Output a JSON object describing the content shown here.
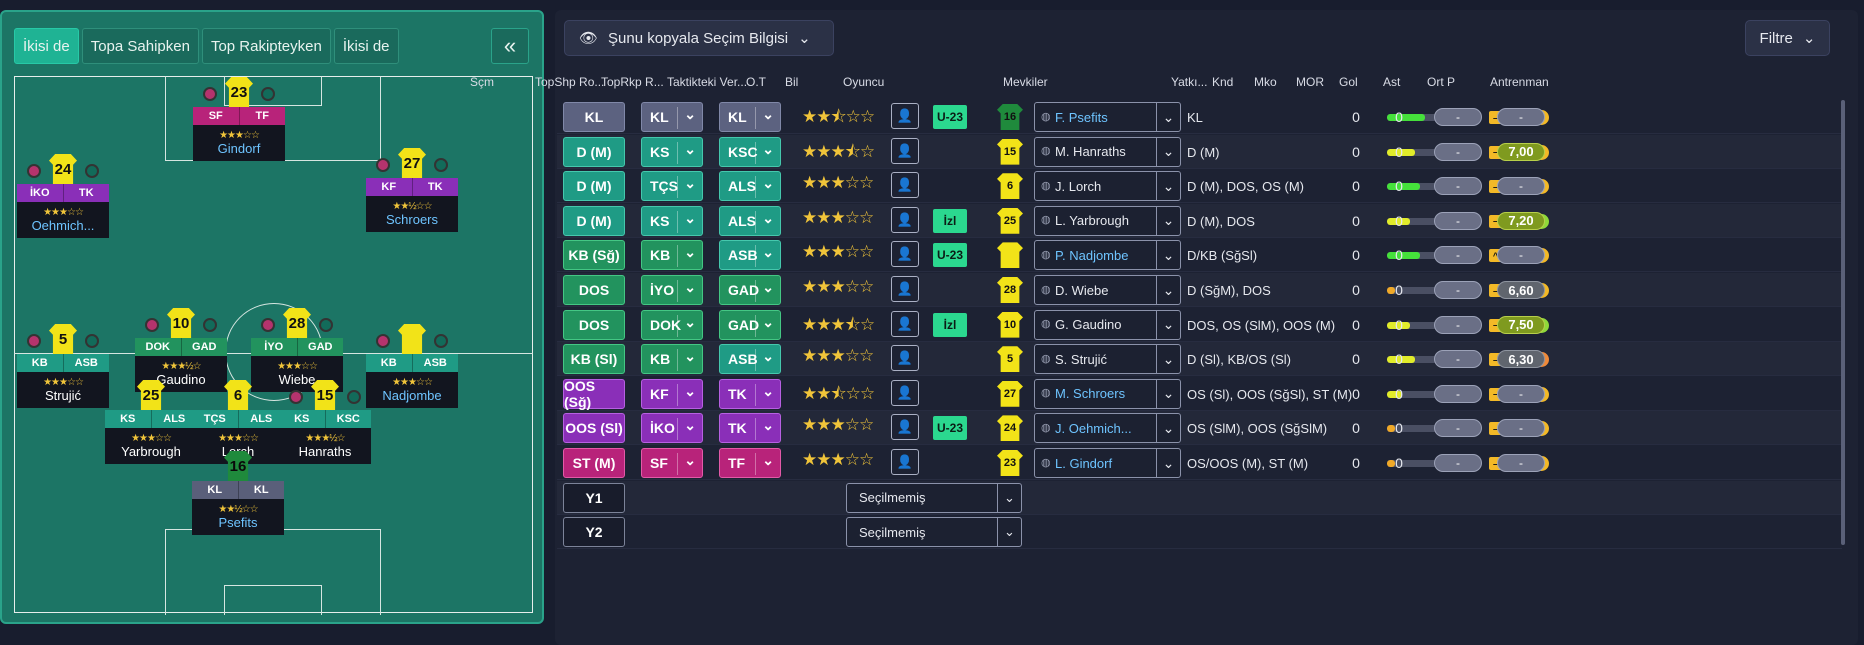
{
  "left_panel": {
    "tabs": [
      {
        "label": "İkisi de",
        "active": true
      },
      {
        "label": "Topa Sahipken",
        "active": false
      },
      {
        "label": "Top Rakipteyken",
        "active": false
      },
      {
        "label": "İkisi de",
        "active": false
      }
    ],
    "collapse_label": "«"
  },
  "pitch_players": [
    {
      "number": "23",
      "pos": [
        "SF",
        "TF"
      ],
      "color": "magenta",
      "stars": "★★★☆☆",
      "name": "Gindorf",
      "blue": true,
      "dots": true
    },
    {
      "number": "24",
      "pos": [
        "İKO",
        "TK"
      ],
      "color": "purple",
      "stars": "★★★☆☆",
      "name": "Oehmich...",
      "blue": true,
      "dots": true
    },
    {
      "number": "27",
      "pos": [
        "KF",
        "TK"
      ],
      "color": "purple",
      "stars": "★★½☆☆",
      "name": "Schroers",
      "blue": true,
      "dots": true
    },
    {
      "number": "5",
      "pos": [
        "KB",
        "ASB"
      ],
      "color": "teal",
      "stars": "★★★☆☆",
      "name": "Strujić",
      "blue": false,
      "dots": true
    },
    {
      "number": "10",
      "pos": [
        "DOK",
        "GAD"
      ],
      "color": "green",
      "stars": "★★★½☆",
      "name": "Gaudino",
      "blue": false,
      "dots": true
    },
    {
      "number": "28",
      "pos": [
        "İYO",
        "GAD"
      ],
      "color": "green",
      "stars": "★★★☆☆",
      "name": "Wiebe",
      "blue": false,
      "dots": true
    },
    {
      "number": "",
      "pos": [
        "KB",
        "ASB"
      ],
      "color": "teal",
      "stars": "★★★☆☆",
      "name": "Nadjombe",
      "blue": true,
      "dots": true
    },
    {
      "number": "25",
      "pos": [
        "KS",
        "ALS"
      ],
      "color": "teal",
      "stars": "★★★☆☆",
      "name": "Yarbrough",
      "blue": false,
      "dots": false
    },
    {
      "number": "6",
      "pos": [
        "TÇS",
        "ALS"
      ],
      "color": "teal",
      "stars": "★★★☆☆",
      "name": "Lorch",
      "blue": false,
      "dots": false
    },
    {
      "number": "15",
      "pos": [
        "KS",
        "KSC"
      ],
      "color": "teal",
      "stars": "★★★½☆",
      "name": "Hanraths",
      "blue": false,
      "dots": true
    },
    {
      "number": "16",
      "pos": [
        "KL",
        "KL"
      ],
      "color": "gray",
      "stars": "★★½☆☆",
      "name": "Psefits",
      "blue": true,
      "dots": false,
      "gk": true
    }
  ],
  "toolbar": {
    "copy_label": "Şunu kopyala Seçim Bilgisi",
    "filter_label": "Filtre"
  },
  "columns": [
    "Sçm",
    "TopShp Ro...",
    "TopRkp R...",
    "Taktikteki Ver...",
    "O.T",
    "Bil",
    "Oyuncu",
    "Mevkiler",
    "Yatkı...",
    "Knd",
    "Mko",
    "MOR",
    "Gol",
    "Ast",
    "Ort P",
    "Antrenman"
  ],
  "rows": [
    {
      "sel": "KL",
      "sel_color": "gray",
      "top": "KL",
      "top_color": "gray",
      "rkp": "KL",
      "rkp_color": "gray",
      "stars": 2.5,
      "badge": "U-23",
      "shirt": "16",
      "gk": true,
      "name": "F. Psefits",
      "blue": true,
      "mevki": "KL",
      "yatk": 0.75,
      "yc": "g",
      "mko": "",
      "mor": "",
      "gol": "0",
      "ast": "0",
      "ortp": "-",
      "antr": "-",
      "antr_v": ""
    },
    {
      "sel": "D (M)",
      "sel_color": "teal",
      "top": "KS",
      "top_color": "teal",
      "rkp": "KSC",
      "rkp_color": "teal",
      "stars": 3.5,
      "badge": "",
      "shirt": "15",
      "name": "M. Hanraths",
      "blue": false,
      "mevki": "D (M)",
      "yatk": 0.55,
      "yc": "y",
      "mko": "",
      "mor": "",
      "gol": "0",
      "ast": "0",
      "ortp": "-",
      "antr": "7,00",
      "antr_v": "v"
    },
    {
      "sel": "D (M)",
      "sel_color": "teal",
      "top": "TÇS",
      "top_color": "teal",
      "rkp": "ALS",
      "rkp_color": "teal",
      "stars": 3,
      "badge": "",
      "shirt": "6",
      "name": "J. Lorch",
      "blue": false,
      "mevki": "D (M), DOS, OS (M)",
      "yatk": 0.65,
      "yc": "g",
      "mko": "",
      "mor": "",
      "gol": "0",
      "ast": "0",
      "ortp": "-",
      "antr": "-",
      "antr_v": ""
    },
    {
      "sel": "D (M)",
      "sel_color": "teal",
      "top": "KS",
      "top_color": "teal",
      "rkp": "ALS",
      "rkp_color": "teal",
      "stars": 3,
      "badge": "İzl",
      "shirt": "25",
      "name": "L. Yarbrough",
      "blue": false,
      "mevki": "D (M), DOS",
      "yatk": 0.45,
      "yc": "y",
      "mko": "",
      "mor": "g",
      "gol": "0",
      "ast": "0",
      "ortp": "-",
      "antr": "7,20",
      "antr_v": "v"
    },
    {
      "sel": "KB (Sğ)",
      "sel_color": "green",
      "top": "KB",
      "top_color": "green",
      "rkp": "ASB",
      "rkp_color": "teal",
      "stars": 3,
      "badge": "U-23",
      "shirt": "",
      "name": "P. Nadjombe",
      "blue": true,
      "mevki": "D/KB (SğSl)",
      "yatk": 0.65,
      "yc": "g",
      "mko": "^",
      "mor": "",
      "gol": "0",
      "ast": "0",
      "ortp": "-",
      "antr": "-",
      "antr_v": ""
    },
    {
      "sel": "DOS",
      "sel_color": "green",
      "top": "İYO",
      "top_color": "green",
      "rkp": "GAD",
      "rkp_color": "green",
      "stars": 3,
      "badge": "",
      "shirt": "28",
      "name": "D. Wiebe",
      "blue": false,
      "mevki": "D (SğM), DOS",
      "yatk": 0.15,
      "yc": "o",
      "mko": "",
      "mor": "",
      "gol": "0",
      "ast": "0",
      "ortp": "-",
      "antr": "6,60",
      "antr_v": "g"
    },
    {
      "sel": "DOS",
      "sel_color": "green",
      "top": "DOK",
      "top_color": "green",
      "rkp": "GAD",
      "rkp_color": "green",
      "stars": 3.5,
      "badge": "İzl",
      "shirt": "10",
      "name": "G. Gaudino",
      "blue": false,
      "mevki": "DOS, OS (SlM), OOS (M)",
      "yatk": 0.45,
      "yc": "y",
      "mko": "",
      "mor": "g",
      "gol": "0",
      "ast": "0",
      "ortp": "-",
      "antr": "7,50",
      "antr_v": "v"
    },
    {
      "sel": "KB (Sl)",
      "sel_color": "green",
      "top": "KB",
      "top_color": "green",
      "rkp": "ASB",
      "rkp_color": "teal",
      "stars": 3,
      "badge": "",
      "shirt": "5",
      "name": "S. Strujić",
      "blue": false,
      "mevki": "D (Sl), KB/OS (Sl)",
      "yatk": 0.55,
      "yc": "y",
      "mko": "",
      "mor": "o",
      "gol": "0",
      "ast": "0",
      "ortp": "-",
      "antr": "6,30",
      "antr_v": "g"
    },
    {
      "sel": "OOS (Sğ)",
      "sel_color": "purple",
      "top": "KF",
      "top_color": "purple",
      "rkp": "TK",
      "rkp_color": "purple",
      "stars": 2.5,
      "badge": "",
      "shirt": "27",
      "name": "M. Schroers",
      "blue": true,
      "mevki": "OS (Sl), OOS (SğSl), ST (M)",
      "yatk": 0.3,
      "yc": "y",
      "mko": "",
      "mor": "",
      "gol": "0",
      "ast": "0",
      "ortp": "-",
      "antr": "-",
      "antr_v": ""
    },
    {
      "sel": "OOS (Sl)",
      "sel_color": "purple",
      "top": "İKO",
      "top_color": "purple",
      "rkp": "TK",
      "rkp_color": "purple",
      "stars": 3,
      "badge": "U-23",
      "shirt": "24",
      "name": "J. Oehmich...",
      "blue": true,
      "mevki": "OS (SlM), OOS (SğSlM)",
      "yatk": 0.15,
      "yc": "o",
      "mko": "",
      "mor": "",
      "gol": "0",
      "ast": "0",
      "ortp": "-",
      "antr": "-",
      "antr_v": ""
    },
    {
      "sel": "ST (M)",
      "sel_color": "magenta",
      "top": "SF",
      "top_color": "magenta",
      "rkp": "TF",
      "rkp_color": "magenta",
      "stars": 3,
      "badge": "",
      "shirt": "23",
      "name": "L. Gindorf",
      "blue": true,
      "mevki": "OS/OOS (M), ST (M)",
      "yatk": 0.15,
      "yc": "o",
      "mko": "",
      "mor": "",
      "gol": "0",
      "ast": "0",
      "ortp": "-",
      "antr": "-",
      "antr_v": ""
    }
  ],
  "subs": [
    {
      "sel": "Y1",
      "placeholder": "Seçilmemiş"
    },
    {
      "sel": "Y2",
      "placeholder": "Seçilmemiş"
    }
  ]
}
